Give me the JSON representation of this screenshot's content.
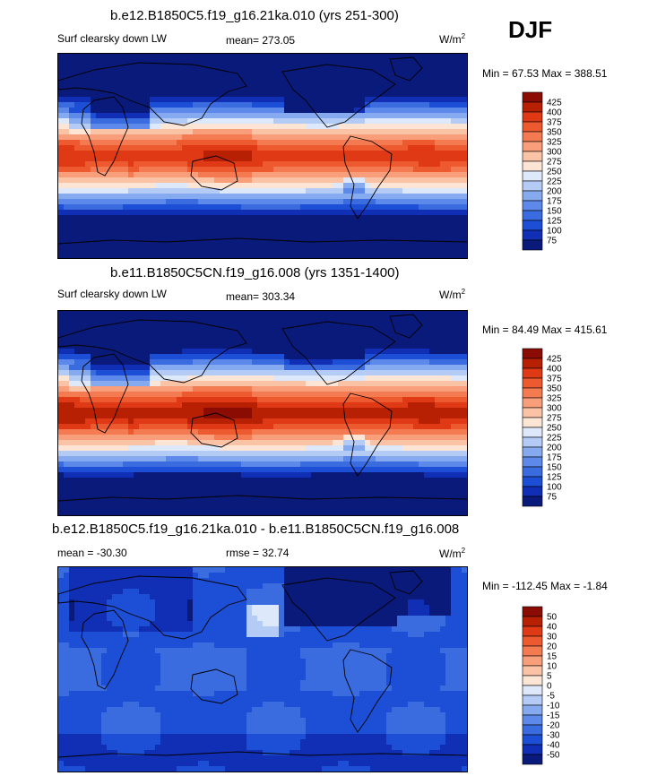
{
  "season": "DJF",
  "panels": [
    {
      "title": "b.e12.B1850C5.f19_g16.21ka.010 (yrs 251-300)",
      "left_label": "Surf clearsky down LW",
      "stat_label": "mean= 273.05",
      "units": "W/m",
      "units_sup": "2",
      "minmax": "Min =  67.53  Max = 388.51"
    },
    {
      "title": "b.e11.B1850C5CN.f19_g16.008 (yrs 1351-1400)",
      "left_label": "Surf clearsky down LW",
      "stat_label": "mean= 303.34",
      "units": "W/m",
      "units_sup": "2",
      "minmax": "Min =  84.49  Max = 415.61"
    },
    {
      "title": "b.e12.B1850C5.f19_g16.21ka.010 - b.e11.B1850C5CN.f19_g16.008",
      "left_label": "mean = -30.30",
      "stat_label": "rmse =  32.74",
      "units": "W/m",
      "units_sup": "2",
      "minmax": "Min = -112.45  Max =  -1.84"
    }
  ],
  "chart_data": [
    {
      "type": "heatmap",
      "title": "b.e12.B1850C5.f19_g16.21ka.010 (yrs 251-300)",
      "variable": "Surf clearsky down LW",
      "units": "W/m2",
      "mean": 273.05,
      "min": 67.53,
      "max": 388.51,
      "colorbar_levels": [
        75,
        100,
        125,
        150,
        175,
        200,
        225,
        250,
        275,
        300,
        325,
        350,
        375,
        400,
        425
      ],
      "colorbar_labels": [
        "425",
        "400",
        "375",
        "350",
        "325",
        "300",
        "275",
        "250",
        "225",
        "200",
        "175",
        "150",
        "125",
        "100",
        "75"
      ],
      "colorbar_colors": [
        "#0a1a7a",
        "#102fb5",
        "#1d4fd6",
        "#3a6ce0",
        "#5d8aea",
        "#86aaf0",
        "#b3cbf5",
        "#dde8fb",
        "#fde5d6",
        "#fbc3a6",
        "#f89e7a",
        "#f47a52",
        "#ee5a30",
        "#df3a15",
        "#b82004",
        "#8a0c02"
      ]
    },
    {
      "type": "heatmap",
      "title": "b.e11.B1850C5CN.f19_g16.008 (yrs 1351-1400)",
      "variable": "Surf clearsky down LW",
      "units": "W/m2",
      "mean": 303.34,
      "min": 84.49,
      "max": 415.61,
      "colorbar_levels": [
        75,
        100,
        125,
        150,
        175,
        200,
        225,
        250,
        275,
        300,
        325,
        350,
        375,
        400,
        425
      ],
      "colorbar_labels": [
        "425",
        "400",
        "375",
        "350",
        "325",
        "300",
        "275",
        "250",
        "225",
        "200",
        "175",
        "150",
        "125",
        "100",
        "75"
      ],
      "colorbar_colors": [
        "#0a1a7a",
        "#102fb5",
        "#1d4fd6",
        "#3a6ce0",
        "#5d8aea",
        "#86aaf0",
        "#b3cbf5",
        "#dde8fb",
        "#fde5d6",
        "#fbc3a6",
        "#f89e7a",
        "#f47a52",
        "#ee5a30",
        "#df3a15",
        "#b82004",
        "#8a0c02"
      ]
    },
    {
      "type": "heatmap",
      "title": "b.e12.B1850C5.f19_g16.21ka.010 - b.e11.B1850C5CN.f19_g16.008",
      "units": "W/m2",
      "mean": -30.3,
      "rmse": 32.74,
      "min": -112.45,
      "max": -1.84,
      "colorbar_levels": [
        -50,
        -40,
        -30,
        -20,
        -15,
        -10,
        -5,
        0,
        5,
        10,
        15,
        20,
        30,
        40,
        50
      ],
      "colorbar_labels": [
        "50",
        "40",
        "30",
        "20",
        "15",
        "10",
        "5",
        "0",
        "-5",
        "-10",
        "-15",
        "-20",
        "-30",
        "-40",
        "-50"
      ],
      "colorbar_colors": [
        "#0a1a7a",
        "#102fb5",
        "#1d4fd6",
        "#3a6ce0",
        "#5d8aea",
        "#86aaf0",
        "#b3cbf5",
        "#dde8fb",
        "#fde5d6",
        "#fbc3a6",
        "#f89e7a",
        "#f47a52",
        "#ee5a30",
        "#df3a15",
        "#b82004",
        "#8a0c02"
      ]
    }
  ]
}
